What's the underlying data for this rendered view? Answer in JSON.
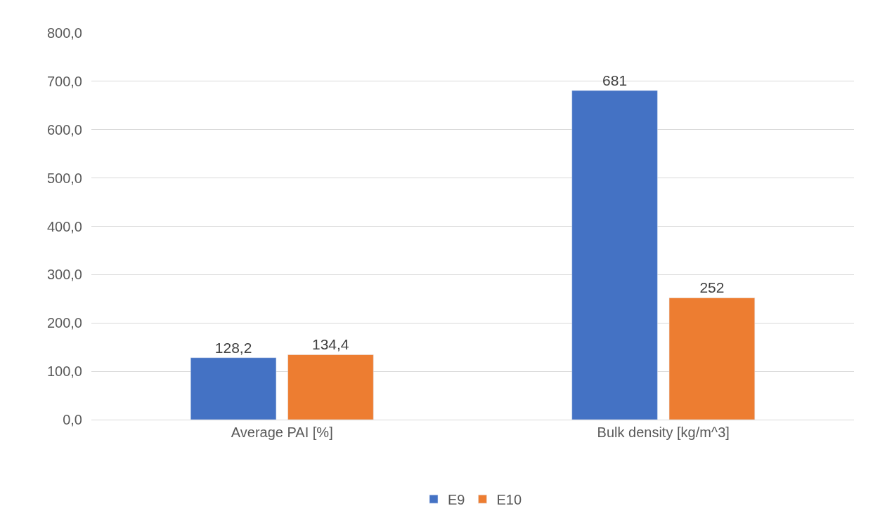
{
  "chart_data": {
    "type": "bar",
    "categories": [
      "Average PAI [%]",
      "Bulk density [kg/m^3]"
    ],
    "series": [
      {
        "name": "E9",
        "color": "#4472c4",
        "values": [
          128.2,
          681
        ],
        "value_labels": [
          "128,2",
          "681"
        ]
      },
      {
        "name": "E10",
        "color": "#ed7d31",
        "values": [
          134.4,
          252
        ],
        "value_labels": [
          "134,4",
          "252"
        ]
      }
    ],
    "ylim": [
      0,
      800
    ],
    "yticks": [
      {
        "value": 0,
        "label": "0,0"
      },
      {
        "value": 100,
        "label": "100,0"
      },
      {
        "value": 200,
        "label": "200,0"
      },
      {
        "value": 300,
        "label": "300,0"
      },
      {
        "value": 400,
        "label": "400,0"
      },
      {
        "value": 500,
        "label": "500,0"
      },
      {
        "value": 600,
        "label": "600,0"
      },
      {
        "value": 700,
        "label": "700,0"
      },
      {
        "value": 800,
        "label": "800,0"
      }
    ],
    "grid": "y",
    "legend": "bottom"
  }
}
